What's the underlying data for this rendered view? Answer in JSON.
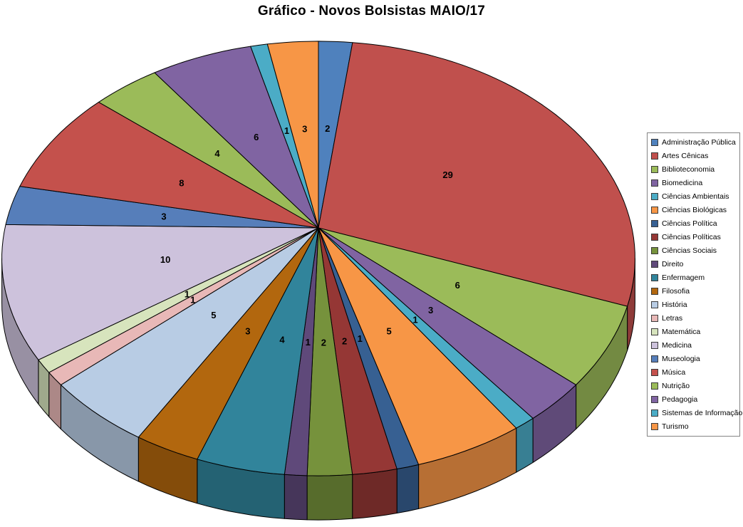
{
  "title": "Gráfico - Novos Bolsistas MAIO/17",
  "chart_data": {
    "type": "pie",
    "style": "3d-perspective",
    "title": "Gráfico - Novos Bolsistas MAIO/17",
    "legend_position": "right",
    "start_angle": "top, clockwise",
    "total": 101,
    "slices": [
      {
        "label": "Administração Pública",
        "value": 2,
        "color": "#4F81BD"
      },
      {
        "label": "Artes Cênicas",
        "value": 29,
        "color": "#C0504D"
      },
      {
        "label": "Biblioteconomia",
        "value": 6,
        "color": "#9BBB59"
      },
      {
        "label": "Biomedicina",
        "value": 3,
        "color": "#8064A2"
      },
      {
        "label": "Ciências Ambientais",
        "value": 1,
        "color": "#4BACC6"
      },
      {
        "label": "Ciências Biológicas",
        "value": 5,
        "color": "#F79646"
      },
      {
        "label": "Ciências Política",
        "value": 1,
        "color": "#376092"
      },
      {
        "label": "Ciências Políticas",
        "value": 2,
        "color": "#953735"
      },
      {
        "label": "Ciências Sociais",
        "value": 2,
        "color": "#76923C"
      },
      {
        "label": "Direito",
        "value": 1,
        "color": "#5F497A"
      },
      {
        "label": "Enfermagem",
        "value": 4,
        "color": "#31849B"
      },
      {
        "label": "Filosofia",
        "value": 3,
        "color": "#B2670E"
      },
      {
        "label": "História",
        "value": 5,
        "color": "#B8CCE4"
      },
      {
        "label": "Letras",
        "value": 1,
        "color": "#E8B8B7"
      },
      {
        "label": "Matemática",
        "value": 1,
        "color": "#D7E4BD"
      },
      {
        "label": "Medicina",
        "value": 10,
        "color": "#CDC2DC"
      },
      {
        "label": "Museologia",
        "value": 3,
        "color": "#567EBA"
      },
      {
        "label": "Música",
        "value": 8,
        "color": "#C4514C"
      },
      {
        "label": "Nutrição",
        "value": 4,
        "color": "#9BBB59"
      },
      {
        "label": "Pedagogia",
        "value": 6,
        "color": "#8064A2"
      },
      {
        "label": "Sistemas de Informação",
        "value": 1,
        "color": "#4BACC6"
      },
      {
        "label": "Turismo",
        "value": 3,
        "color": "#F79646"
      }
    ]
  }
}
